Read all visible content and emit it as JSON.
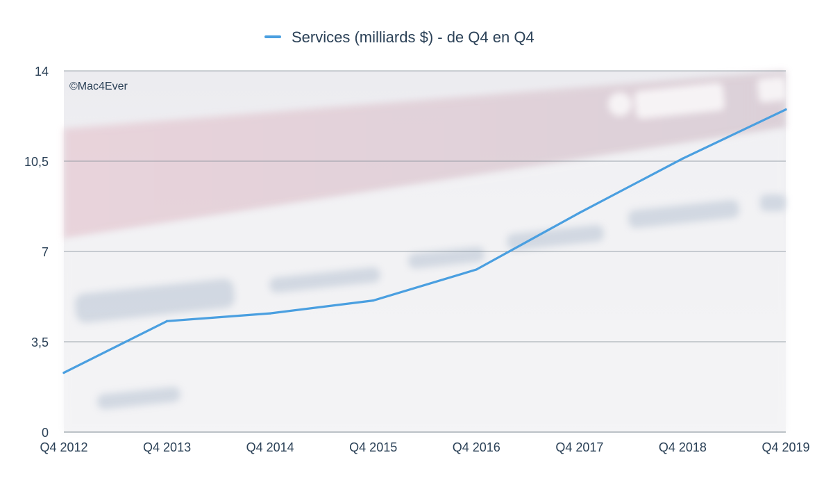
{
  "watermark": "©Mac4Ever",
  "colors": {
    "line": "#4a9fe0",
    "grid": "#7e8a93",
    "text": "#2b4157",
    "background_band": "#d8c9d1"
  },
  "chart_data": {
    "type": "line",
    "x": [
      "Q4 2012",
      "Q4 2013",
      "Q4 2014",
      "Q4 2015",
      "Q4 2016",
      "Q4 2017",
      "Q4 2018",
      "Q4 2019"
    ],
    "series": [
      {
        "name": "Services (milliards $) - de Q4 en Q4",
        "values": [
          2.3,
          4.3,
          4.6,
          5.1,
          6.3,
          8.5,
          10.6,
          12.5
        ]
      }
    ],
    "ylim": [
      0,
      14
    ],
    "yticks": [
      0,
      3.5,
      7,
      10.5,
      14
    ],
    "ytick_labels": [
      "0",
      "3,5",
      "7",
      "10,5",
      "14"
    ],
    "grid": true,
    "legend": "top-center"
  }
}
